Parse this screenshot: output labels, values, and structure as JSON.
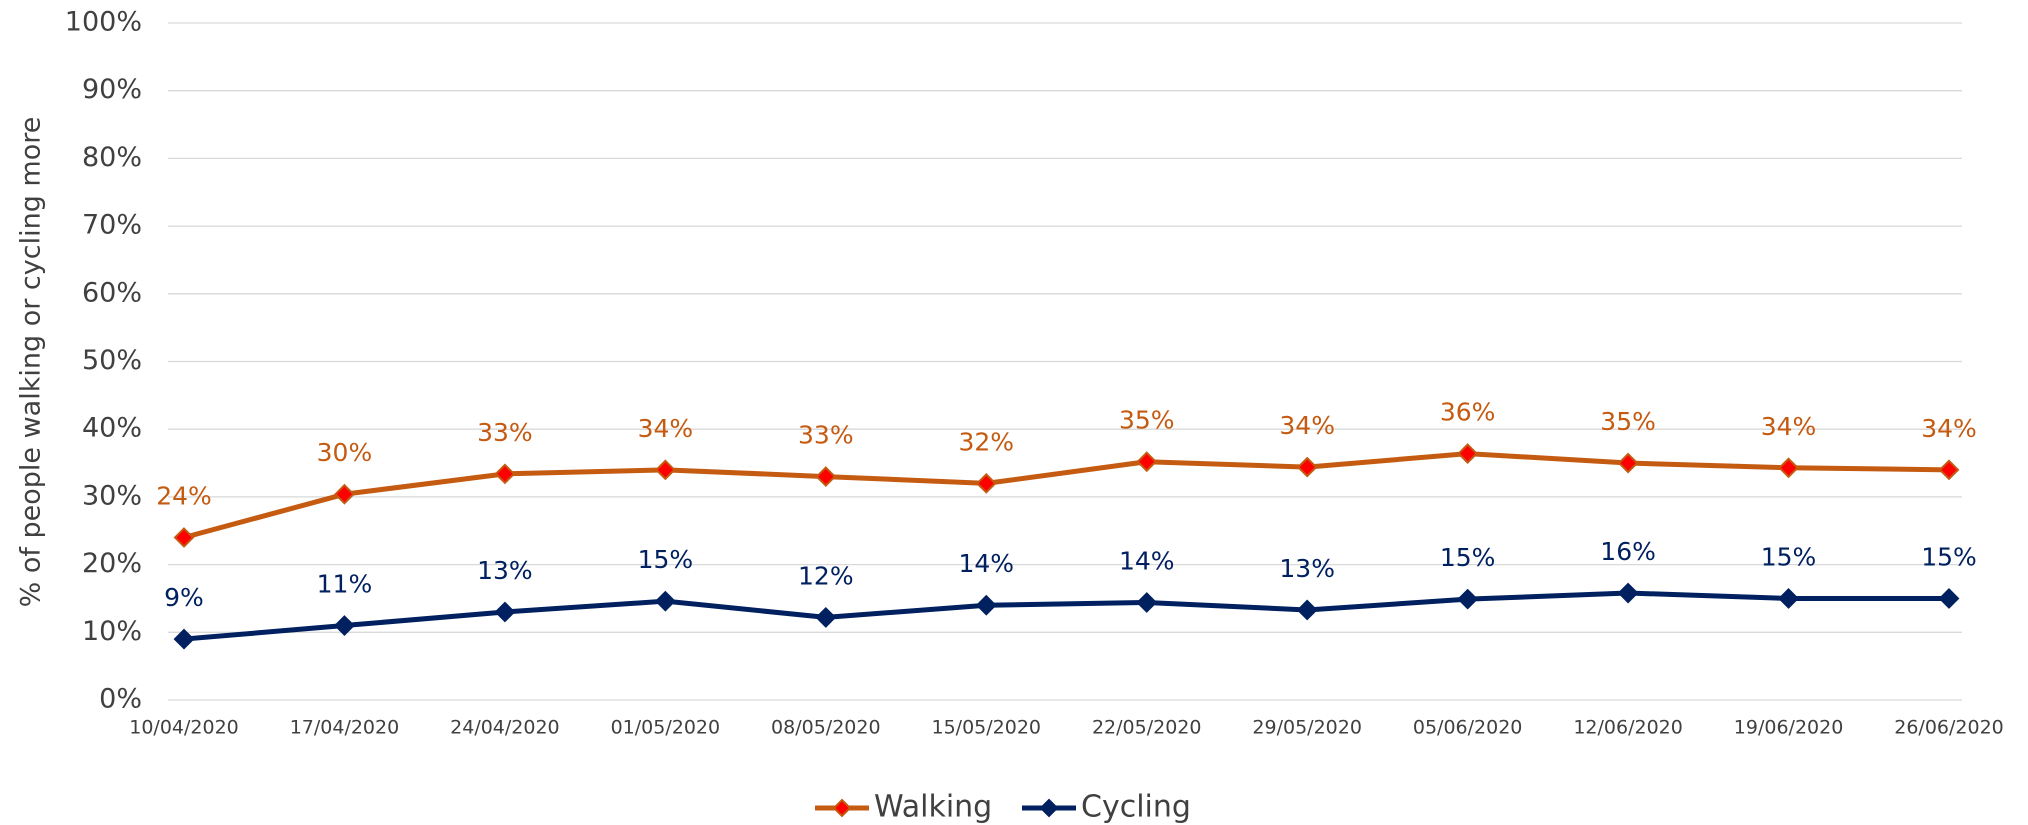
{
  "chart_data": {
    "type": "line",
    "y_axis_label": "% of people walking or cycling more",
    "categories": [
      "10/04/2020",
      "17/04/2020",
      "24/04/2020",
      "01/05/2020",
      "08/05/2020",
      "15/05/2020",
      "22/05/2020",
      "29/05/2020",
      "05/06/2020",
      "12/06/2020",
      "19/06/2020",
      "26/06/2020"
    ],
    "series": [
      {
        "name": "Walking",
        "color": "#c55a11",
        "marker_color": "#ff0000",
        "values": [
          24,
          30.4,
          33.4,
          34,
          33,
          32,
          35.2,
          34.4,
          36.4,
          35,
          34.3,
          34
        ],
        "value_labels": [
          "24%",
          "30%",
          "33%",
          "34%",
          "33%",
          "32%",
          "35%",
          "34%",
          "36%",
          "35%",
          "34%",
          "34%"
        ]
      },
      {
        "name": "Cycling",
        "color": "#002060",
        "marker_color": "#002060",
        "values": [
          9,
          11,
          13,
          14.6,
          12.2,
          14,
          14.4,
          13.3,
          14.9,
          15.8,
          15,
          15
        ],
        "value_labels": [
          "9%",
          "11%",
          "13%",
          "15%",
          "12%",
          "14%",
          "14%",
          "13%",
          "15%",
          "16%",
          "15%",
          "15%"
        ]
      }
    ],
    "ylim": [
      0,
      100
    ],
    "yticks": [
      {
        "value": 0,
        "label": "0%"
      },
      {
        "value": 10,
        "label": "10%"
      },
      {
        "value": 20,
        "label": "20%"
      },
      {
        "value": 30,
        "label": "30%"
      },
      {
        "value": 40,
        "label": "40%"
      },
      {
        "value": 50,
        "label": "50%"
      },
      {
        "value": 60,
        "label": "60%"
      },
      {
        "value": 70,
        "label": "70%"
      },
      {
        "value": 80,
        "label": "80%"
      },
      {
        "value": 90,
        "label": "90%"
      },
      {
        "value": 100,
        "label": "100%"
      }
    ],
    "grid": true,
    "legend": "bottom"
  }
}
